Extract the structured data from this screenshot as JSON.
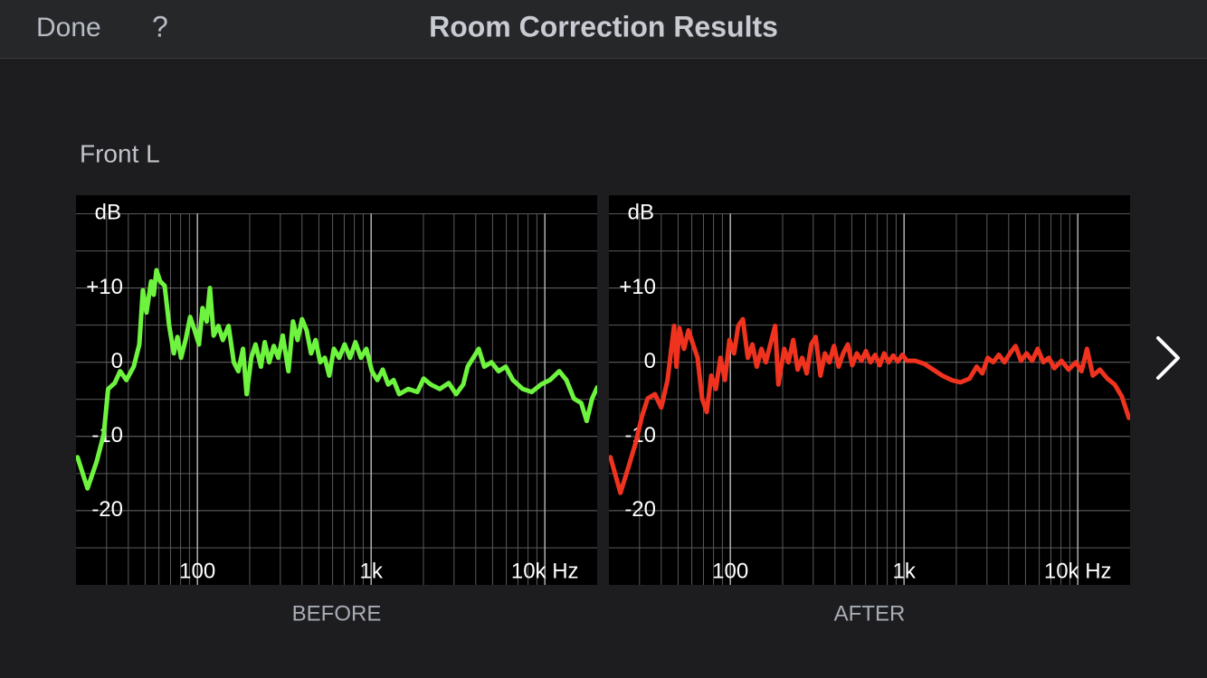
{
  "header": {
    "done": "Done",
    "help": "?",
    "title": "Room Correction Results"
  },
  "channel": "Front L",
  "chart_data": [
    {
      "type": "line",
      "caption": "BEFORE",
      "y_label": "dB",
      "x_scale": "log",
      "color": "#6ef43f",
      "xlim": [
        20,
        20000
      ],
      "ylim": [
        -30,
        22.5
      ],
      "xticks": [
        100,
        {
          "value": 1000,
          "label": "1k"
        },
        {
          "value": 10000,
          "label": "10k Hz"
        }
      ],
      "minor_xticks": [
        30,
        40,
        50,
        60,
        70,
        80,
        90,
        200,
        300,
        400,
        500,
        600,
        700,
        800,
        900,
        2000,
        3000,
        4000,
        5000,
        6000,
        7000,
        8000,
        9000
      ],
      "yticks": [
        {
          "value": 10,
          "label": "+10"
        },
        0,
        -10,
        -20
      ],
      "minor_yticks": [
        20,
        15,
        5,
        -5,
        -15,
        -25
      ],
      "x": [
        20.4,
        23.3,
        26.3,
        28.9,
        30.6,
        33.4,
        35.9,
        39,
        43,
        46.3,
        48.5,
        50.9,
        54.1,
        56,
        58.1,
        61,
        64.8,
        68.8,
        73.1,
        76.7,
        80.5,
        85.5,
        90.8,
        96.4,
        102,
        107,
        113,
        118,
        124,
        132,
        140,
        151,
        162,
        172,
        183,
        192,
        204,
        216,
        232,
        244,
        259,
        275,
        292,
        310,
        334,
        355,
        377,
        400,
        425,
        451,
        479,
        509,
        541,
        574,
        610,
        655,
        704,
        756,
        812,
        873,
        938,
        1010,
        1086,
        1166,
        1253,
        1347,
        1450,
        1635,
        1846,
        2004,
        2201,
        2481,
        2797,
        3082,
        3390,
        3597,
        3870,
        4160,
        4480,
        4920,
        5410,
        5950,
        6550,
        7450,
        8400,
        9500,
        10700,
        12100,
        13300,
        14700,
        16200,
        17400,
        18700,
        20000
      ],
      "values": [
        -12.8,
        -17,
        -13.4,
        -9.7,
        -3.6,
        -2.8,
        -1.2,
        -2.4,
        -0.6,
        2.4,
        9.7,
        6.7,
        10.9,
        9.1,
        12.4,
        10.9,
        10.3,
        4.9,
        1.2,
        3.4,
        0.6,
        3,
        6.1,
        4.3,
        2.4,
        7.3,
        5.5,
        10,
        3.6,
        4.9,
        3,
        4.9,
        0,
        -1.2,
        1.8,
        -4.3,
        0.6,
        2.4,
        -0.6,
        2.7,
        0,
        2.2,
        0.6,
        3.6,
        -1.2,
        5.5,
        3,
        5.8,
        4.3,
        1.2,
        3,
        0,
        0.6,
        -1.8,
        1.8,
        0.6,
        2.4,
        0.6,
        2.7,
        0.6,
        1.8,
        -1.2,
        -2.4,
        -1,
        -3,
        -2.4,
        -4.3,
        -3.6,
        -4,
        -2.2,
        -3,
        -3.6,
        -2.8,
        -4.3,
        -3,
        -0.6,
        0.6,
        1.8,
        -0.6,
        0,
        -1.2,
        -0.6,
        -2.4,
        -3.6,
        -4,
        -3,
        -2.4,
        -1.2,
        -2.4,
        -4.9,
        -5.5,
        -7.9,
        -4.9,
        -3.4
      ]
    },
    {
      "type": "line",
      "caption": "AFTER",
      "y_label": "dB",
      "x_scale": "log",
      "color": "#f0331f",
      "xlim": [
        20,
        20000
      ],
      "ylim": [
        -30,
        22.5
      ],
      "xticks": [
        100,
        {
          "value": 1000,
          "label": "1k"
        },
        {
          "value": 10000,
          "label": "10k Hz"
        }
      ],
      "minor_xticks": [
        30,
        40,
        50,
        60,
        70,
        80,
        90,
        200,
        300,
        400,
        500,
        600,
        700,
        800,
        900,
        2000,
        3000,
        4000,
        5000,
        6000,
        7000,
        8000,
        9000
      ],
      "yticks": [
        {
          "value": 10,
          "label": "+10"
        },
        0,
        -10,
        -20
      ],
      "minor_yticks": [
        20,
        15,
        5,
        -5,
        -15,
        -25
      ],
      "x": [
        20.4,
        23.3,
        26,
        28.5,
        31,
        33.4,
        36.8,
        40,
        43.5,
        47.4,
        49,
        50.9,
        54.1,
        57.4,
        61,
        64.8,
        68.8,
        73.1,
        77.6,
        82.5,
        87.6,
        93,
        98.8,
        105,
        111,
        118,
        126,
        134,
        142,
        151,
        160,
        170,
        181,
        189,
        204,
        216,
        230,
        244,
        259,
        275,
        292,
        310,
        330,
        350,
        372,
        395,
        420,
        446,
        474,
        503,
        535,
        568,
        603,
        641,
        681,
        723,
        768,
        816,
        866,
        921,
        978,
        1039,
        1157,
        1306,
        1472,
        1660,
        1872,
        2110,
        2380,
        2620,
        2820,
        3030,
        3260,
        3510,
        3780,
        4070,
        4380,
        4710,
        5070,
        5460,
        5880,
        6330,
        6810,
        7330,
        8050,
        8860,
        9740,
        10500,
        11300,
        12200,
        13400,
        14800,
        16300,
        17900,
        19700
      ],
      "values": [
        -12.8,
        -17.6,
        -14,
        -10.9,
        -7.3,
        -4.9,
        -4.3,
        -6.1,
        -2.4,
        4.9,
        -0.6,
        4.6,
        1.8,
        4.3,
        2.4,
        0.6,
        -4.9,
        -6.7,
        -1.8,
        -3.6,
        0.6,
        -2.4,
        3,
        1.2,
        4.9,
        5.8,
        0.6,
        2.4,
        -0.6,
        1.8,
        0,
        2.4,
        4.9,
        -3,
        1.8,
        0,
        3,
        -1,
        0.6,
        -1.5,
        2.4,
        3.4,
        -1.8,
        1.2,
        0,
        2.2,
        -0.6,
        1.2,
        2.4,
        -0.4,
        1.2,
        0.2,
        1.5,
        0,
        1,
        -0.4,
        1.2,
        0,
        0.9,
        0.1,
        1,
        0.2,
        0.2,
        -0.2,
        -1,
        -1.8,
        -2.4,
        -2.7,
        -2.2,
        -0.6,
        -1.5,
        0.6,
        0,
        1,
        0,
        1.2,
        2.2,
        0.2,
        1.2,
        0.2,
        1.8,
        0,
        0.6,
        -0.8,
        0.2,
        -1,
        0,
        -1.2,
        1.8,
        -1.8,
        -1,
        -2.2,
        -3,
        -4.6,
        -7.5
      ]
    }
  ]
}
